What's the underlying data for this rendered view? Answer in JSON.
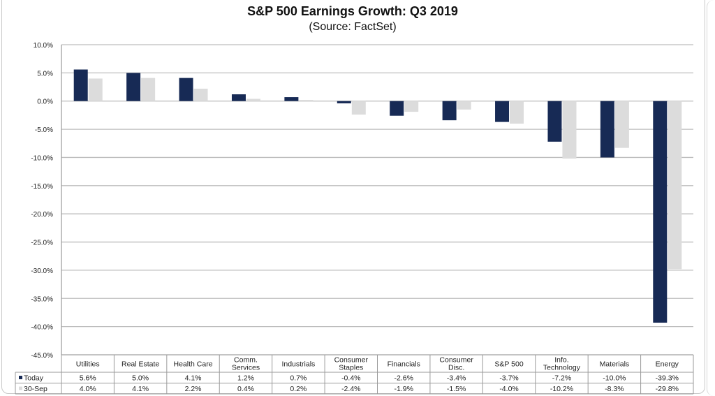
{
  "chart_data": {
    "type": "bar",
    "title": "S&P 500 Earnings Growth: Q3 2019",
    "subtitle": "(Source: FactSet)",
    "xlabel": "",
    "ylabel": "",
    "ylim": [
      -45,
      10
    ],
    "yticks": [
      10,
      5,
      0,
      -5,
      -10,
      -15,
      -20,
      -25,
      -30,
      -35,
      -40,
      -45
    ],
    "ytick_labels": [
      "10.0%",
      "5.0%",
      "0.0%",
      "-5.0%",
      "-10.0%",
      "-15.0%",
      "-20.0%",
      "-25.0%",
      "-30.0%",
      "-35.0%",
      "-40.0%",
      "-45.0%"
    ],
    "grid": true,
    "legend_placement": "bottom-left (data table)",
    "categories": [
      [
        "Utilities"
      ],
      [
        "Real Estate"
      ],
      [
        "Health Care"
      ],
      [
        "Comm.",
        "Services"
      ],
      [
        "Industrials"
      ],
      [
        "Consumer",
        "Staples"
      ],
      [
        "Financials"
      ],
      [
        "Consumer",
        "Disc."
      ],
      [
        "S&P 500"
      ],
      [
        "Info.",
        "Technology"
      ],
      [
        "Materials"
      ],
      [
        "Energy"
      ]
    ],
    "series": [
      {
        "name": "Today",
        "color": "#172a55",
        "values": [
          5.6,
          5.0,
          4.1,
          1.2,
          0.7,
          -0.4,
          -2.6,
          -3.4,
          -3.7,
          -7.2,
          -10.0,
          -39.3
        ],
        "labels": [
          "5.6%",
          "5.0%",
          "4.1%",
          "1.2%",
          "0.7%",
          "-0.4%",
          "-2.6%",
          "-3.4%",
          "-3.7%",
          "-7.2%",
          "-10.0%",
          "-39.3%"
        ]
      },
      {
        "name": "30-Sep",
        "color": "#dcdcdc",
        "values": [
          4.0,
          4.1,
          2.2,
          0.4,
          0.2,
          -2.4,
          -1.9,
          -1.5,
          -4.0,
          -10.2,
          -8.3,
          -29.8
        ],
        "labels": [
          "4.0%",
          "4.1%",
          "2.2%",
          "0.4%",
          "0.2%",
          "-2.4%",
          "-1.9%",
          "-1.5%",
          "-4.0%",
          "-10.2%",
          "-8.3%",
          "-29.8%"
        ]
      }
    ]
  }
}
